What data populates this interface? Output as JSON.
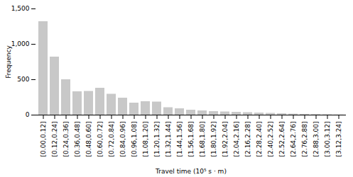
{
  "chart_data": {
    "type": "bar",
    "xlabel": "Travel time (10⁵ s · m)",
    "ylabel": "Frequency",
    "categories": [
      "[0.00,0.12]",
      "[0.12,0.24]",
      "[0.24,0.36]",
      "[0.36,0.48]",
      "[0.48,0.60]",
      "[0.60,0.72]",
      "[0.72,0.84]",
      "[0.84,0.96]",
      "[0.96,1.08]",
      "[1.08,1.20]",
      "[1.20,1.32]",
      "[1.32,1.44]",
      "[1.44,1.56]",
      "[1.56,1.68]",
      "[1.68,1.80]",
      "[1.80,1.92]",
      "[1.92,2.04]",
      "[2.04,2.16]",
      "[2.16,2.28]",
      "[2.28,2.40]",
      "[2.40,2.52]",
      "[2.52,2.64]",
      "[2.64,2.76]",
      "[2.76,2.88]",
      "[2.88,3.00]",
      "[3.00,3.12]",
      "[3.12,3.24]"
    ],
    "values": [
      1320,
      820,
      500,
      330,
      335,
      380,
      295,
      240,
      170,
      190,
      185,
      105,
      90,
      70,
      60,
      50,
      45,
      40,
      35,
      30,
      25,
      20,
      15,
      12,
      8,
      5,
      2
    ],
    "color": "#c8c8c8",
    "ylim": [
      0,
      1500
    ],
    "yticks": [
      0,
      500,
      1000,
      1500
    ],
    "grid": false
  }
}
